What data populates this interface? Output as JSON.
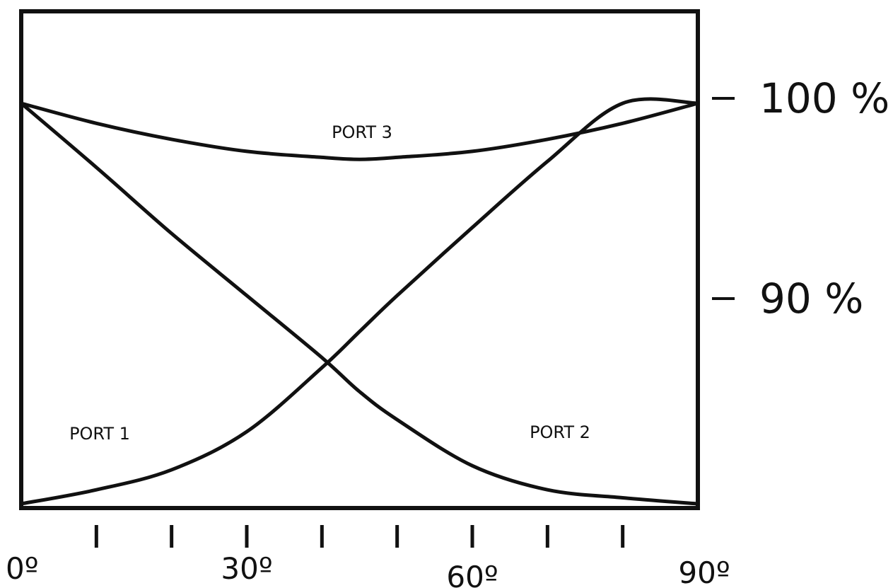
{
  "chart_data": {
    "type": "line",
    "x_unit": "degrees",
    "y_unit": "percent",
    "xlim": [
      0,
      90
    ],
    "x_tick_step": 10,
    "x_tick_labels": [
      {
        "value": 0,
        "label": "0º"
      },
      {
        "value": 30,
        "label": "30º"
      },
      {
        "value": 60,
        "label": "60º"
      },
      {
        "value": 90,
        "label": "90º"
      }
    ],
    "y_tick_labels": [
      {
        "value": 100,
        "label": "100 %"
      },
      {
        "value": 90,
        "label": "90 %"
      }
    ],
    "grid": false,
    "legend": "none",
    "line_color": "#111111",
    "series": [
      {
        "name": "PORT 1",
        "x": [
          0,
          10,
          20,
          30,
          40,
          45,
          50,
          60,
          70,
          80,
          90
        ],
        "y": [
          80,
          80.7,
          81.7,
          83.6,
          86.8,
          88.6,
          90.4,
          93.8,
          97.1,
          100,
          100
        ]
      },
      {
        "name": "PORT 2",
        "x": [
          0,
          10,
          20,
          30,
          40,
          45,
          50,
          60,
          70,
          80,
          90
        ],
        "y": [
          100,
          96.8,
          93.5,
          90.4,
          87.3,
          85.6,
          84.2,
          81.9,
          80.7,
          80.3,
          80
        ]
      },
      {
        "name": "PORT 3",
        "x": [
          0,
          10,
          20,
          30,
          40,
          45,
          50,
          60,
          70,
          80,
          90
        ],
        "y": [
          100,
          99.0,
          98.2,
          97.6,
          97.3,
          97.2,
          97.3,
          97.6,
          98.2,
          99.0,
          100
        ]
      }
    ]
  }
}
